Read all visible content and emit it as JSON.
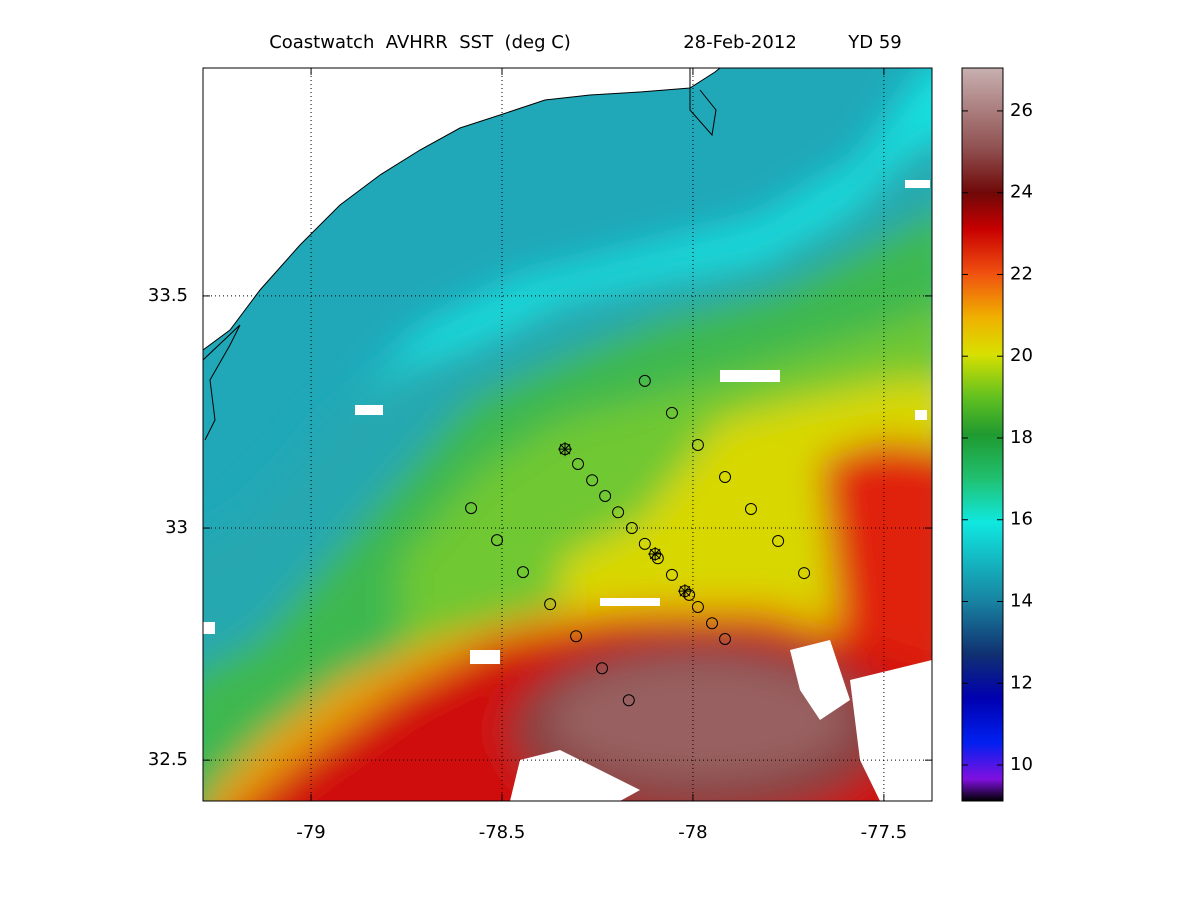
{
  "chart_data": {
    "type": "map",
    "title": "Coastwatch  AVHRR  SST  (deg C)",
    "date": "28-Feb-2012",
    "yearday": "YD 59",
    "xlim": [
      -79.283,
      -77.374
    ],
    "ylim": [
      32.412,
      33.991
    ],
    "xticks": [
      -79,
      -78.5,
      -78,
      -77.5
    ],
    "yticks": [
      32.5,
      33,
      33.5
    ],
    "grid": true,
    "colorbar": {
      "lim": [
        9.12,
        27.05
      ],
      "ticks": [
        10,
        12,
        14,
        16,
        18,
        20,
        22,
        24,
        26
      ]
    },
    "stations": {
      "x": [
        -78.126,
        -78.055,
        -77.987,
        -77.916,
        -77.848,
        -77.777,
        -77.709,
        -78.581,
        -78.513,
        -78.445,
        -78.374,
        -78.306,
        -78.238,
        -78.168,
        -78.335,
        -78.301,
        -78.264,
        -78.23,
        -78.196,
        -78.16,
        -78.126,
        -78.099,
        -78.092,
        -78.055,
        -78.021,
        -78.01,
        -77.987,
        -77.95,
        -77.916
      ],
      "y": [
        33.317,
        33.248,
        33.179,
        33.11,
        33.041,
        32.972,
        32.903,
        33.043,
        32.974,
        32.905,
        32.836,
        32.767,
        32.698,
        32.629,
        33.17,
        33.138,
        33.103,
        33.069,
        33.034,
        33.0,
        32.966,
        32.944,
        32.935,
        32.899,
        32.864,
        32.856,
        32.83,
        32.795,
        32.761
      ]
    },
    "crosses": {
      "x": [
        -78.335,
        -78.099,
        -78.021
      ],
      "y": [
        33.17,
        32.944,
        32.864
      ]
    }
  }
}
